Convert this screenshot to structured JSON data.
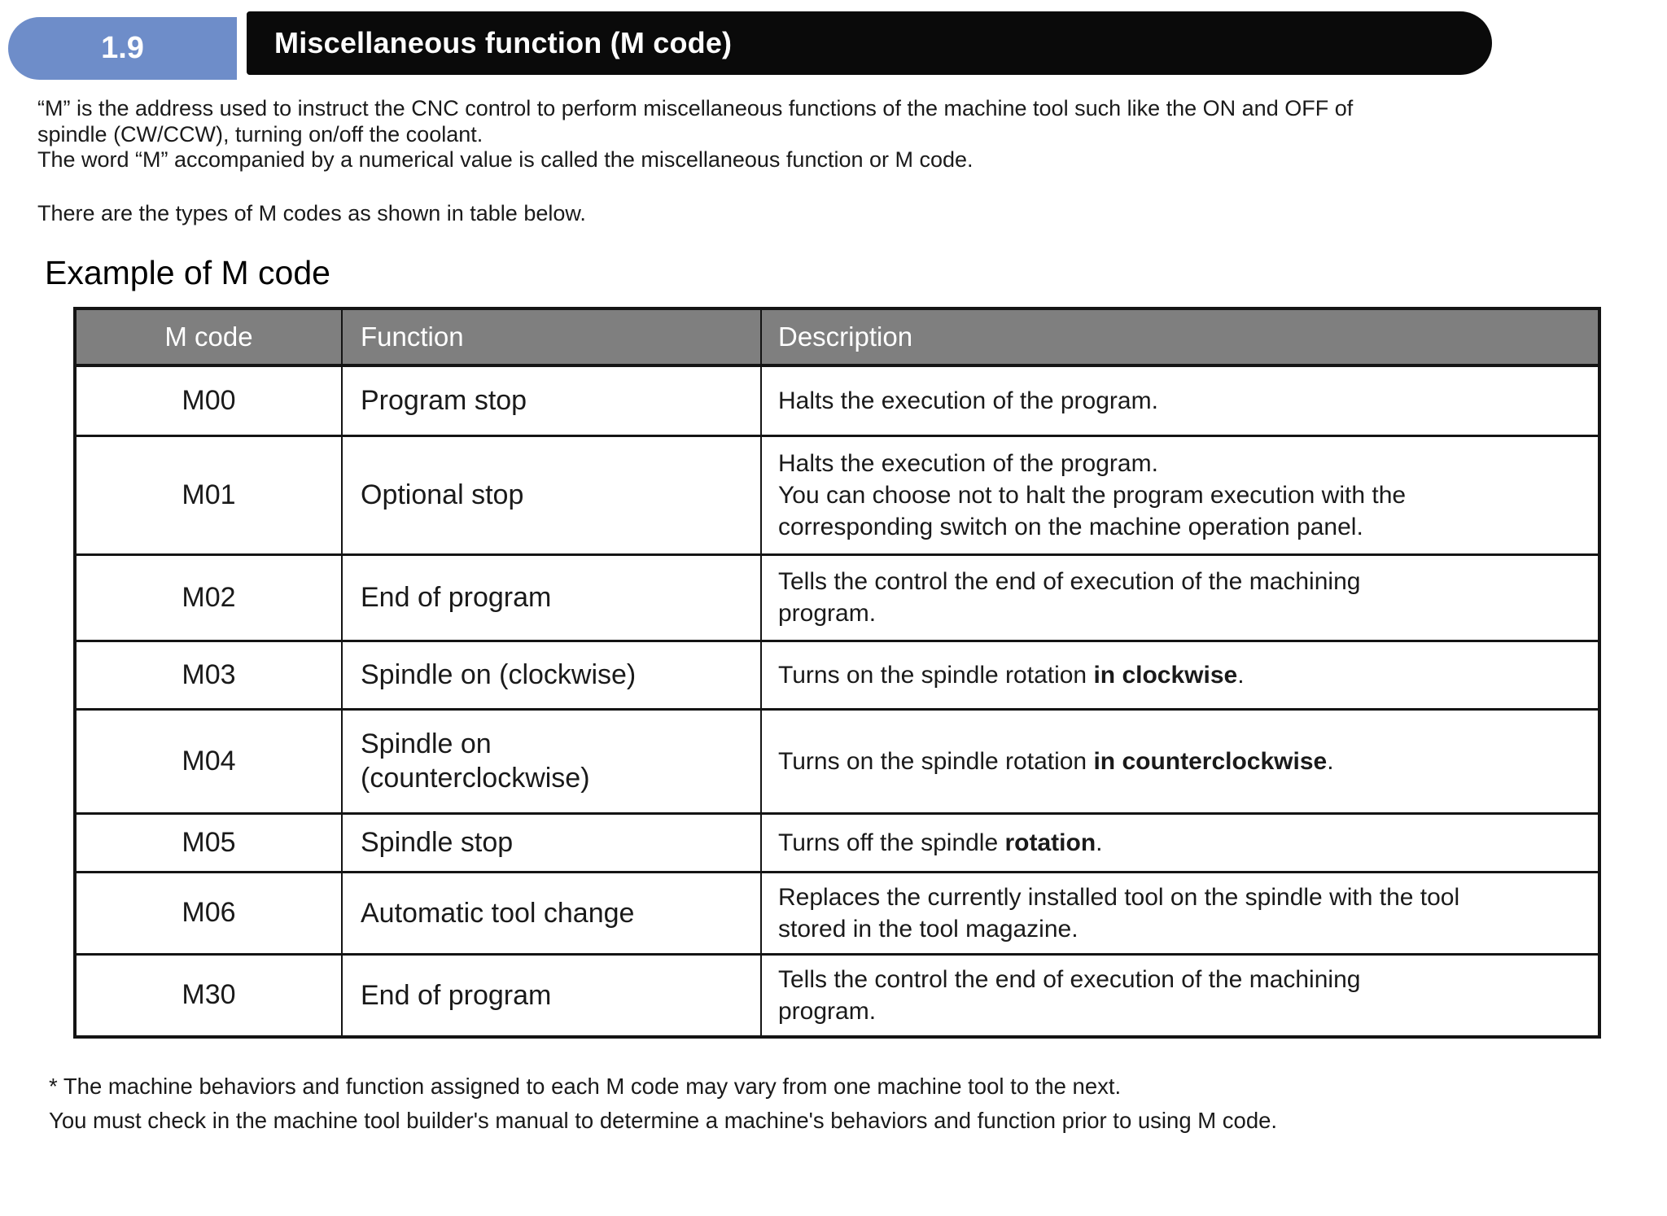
{
  "header": {
    "section_number": "1.9",
    "title": "Miscellaneous function (M code)",
    "badge_color": "#6E8DC9",
    "bar_color": "#0a0a0a"
  },
  "intro": {
    "paragraph": "“M” is the address used to instruct the CNC control to perform miscellaneous functions of the machine tool such like the ON and OFF of\nspindle (CW/CCW), turning on/off the coolant.\nThe word “M” accompanied by a numerical value is called the miscellaneous function or M code.",
    "note": "There are the types of M codes as shown in table below."
  },
  "example_heading": "Example of M code",
  "table": {
    "header_bg": "#7f7f7f",
    "headers": [
      "M code",
      "Function",
      "Description"
    ],
    "rows": [
      {
        "code": "M00",
        "function": [
          {
            "t": "Program stop"
          }
        ],
        "description": [
          {
            "t": "Halts the execution of the program."
          }
        ]
      },
      {
        "code": "M01",
        "function": [
          {
            "t": "Optional stop"
          }
        ],
        "description": [
          {
            "t": "Halts the execution of the program."
          },
          {
            "br": true
          },
          {
            "t": "You can choose not to halt the program execution with the"
          },
          {
            "br": true
          },
          {
            "t": "corresponding switch on the machine operation panel."
          }
        ]
      },
      {
        "code": "M02",
        "function": [
          {
            "t": "End of program"
          }
        ],
        "description": [
          {
            "t": "Tells the control the end of execution of the machining"
          },
          {
            "br": true
          },
          {
            "t": "program."
          }
        ]
      },
      {
        "code": "M03",
        "function": [
          {
            "t": "Spindle on (clockwise)"
          }
        ],
        "description": [
          {
            "t": "Turns on the spindle rotation "
          },
          {
            "t": "in clockwise",
            "b": true
          },
          {
            "t": "."
          }
        ]
      },
      {
        "code": "M04",
        "function": [
          {
            "t": "Spindle on"
          },
          {
            "br": true
          },
          {
            "t": "(counterclockwise)"
          }
        ],
        "description": [
          {
            "t": "Turns on the spindle rotation "
          },
          {
            "t": "in counterclockwise",
            "b": true
          },
          {
            "t": "."
          }
        ]
      },
      {
        "code": "M05",
        "function": [
          {
            "t": "Spindle stop"
          }
        ],
        "description": [
          {
            "t": "Turns off the spindle "
          },
          {
            "t": "rotation",
            "b": true
          },
          {
            "t": "."
          }
        ]
      },
      {
        "code": "M06",
        "function": [
          {
            "t": "Automatic tool change"
          }
        ],
        "description": [
          {
            "t": "Replaces the currently installed tool on the spindle with the tool"
          },
          {
            "br": true
          },
          {
            "t": "stored in the tool magazine."
          }
        ]
      },
      {
        "code": "M30",
        "function": [
          {
            "t": "End of program"
          }
        ],
        "description": [
          {
            "t": "Tells the control the end of execution of the machining"
          },
          {
            "br": true
          },
          {
            "t": "program."
          }
        ]
      }
    ]
  },
  "footnote": "* The machine behaviors and function assigned to each M code may vary from one machine tool to the next.\nYou must check in the machine tool builder's manual to determine a machine's behaviors and function prior to using M code."
}
